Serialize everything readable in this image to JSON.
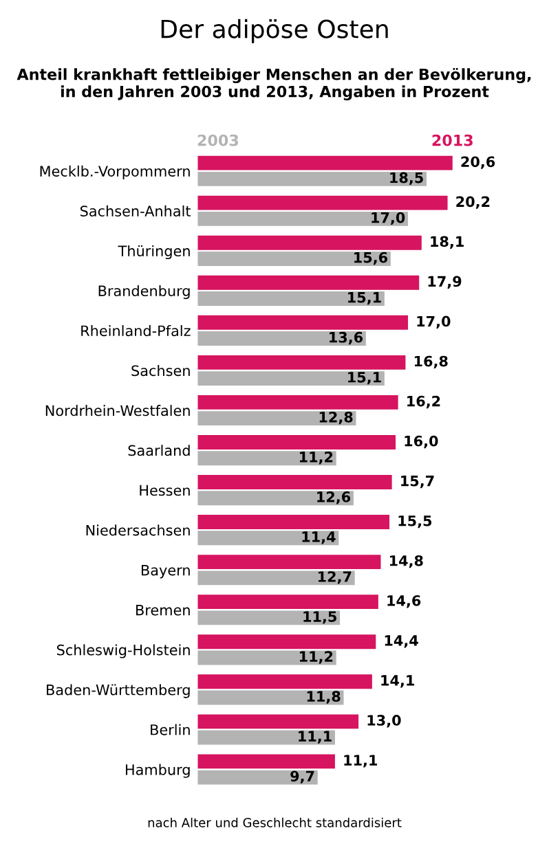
{
  "chart_data": {
    "type": "bar",
    "orientation": "horizontal",
    "title": "Der adipöse Osten",
    "subtitle": "Anteil krankhaft fettleibiger Menschen an der Bevölkerung,\nin den Jahren 2003 und 2013, Angaben in Prozent",
    "categories": [
      "Mecklb.-Vorpommern",
      "Sachsen-Anhalt",
      "Thüringen",
      "Brandenburg",
      "Rheinland-Pfalz",
      "Sachsen",
      "Nordrhein-Westfalen",
      "Saarland",
      "Hessen",
      "Niedersachsen",
      "Bayern",
      "Bremen",
      "Schleswig-Holstein",
      "Baden-Württemberg",
      "Berlin",
      "Hamburg"
    ],
    "series": [
      {
        "name": "2013",
        "color": "#d6145f",
        "values": [
          20.6,
          20.2,
          18.1,
          17.9,
          17.0,
          16.8,
          16.2,
          16.0,
          15.7,
          15.5,
          14.8,
          14.6,
          14.4,
          14.1,
          13.0,
          11.1
        ],
        "value_labels": [
          "20,6",
          "20,2",
          "18,1",
          "17,9",
          "17,0",
          "16,8",
          "16,2",
          "16,0",
          "15,7",
          "15,5",
          "14,8",
          "14,6",
          "14,4",
          "14,1",
          "13,0",
          "11,1"
        ]
      },
      {
        "name": "2003",
        "color": "#b3b3b3",
        "values": [
          18.5,
          17.0,
          15.6,
          15.1,
          13.6,
          15.1,
          12.8,
          11.2,
          12.6,
          11.4,
          12.7,
          11.5,
          11.2,
          11.8,
          11.1,
          9.7
        ],
        "value_labels": [
          "18,5",
          "17,0",
          "15,6",
          "15,1",
          "13,6",
          "15,1",
          "12,8",
          "11,2",
          "12,6",
          "11,4",
          "12,7",
          "11,5",
          "11,2",
          "11,8",
          "11,1",
          "9,7"
        ]
      }
    ],
    "legend": false,
    "grid": false,
    "annotations": [
      "nach Alter und Geschlecht standardisiert"
    ]
  }
}
